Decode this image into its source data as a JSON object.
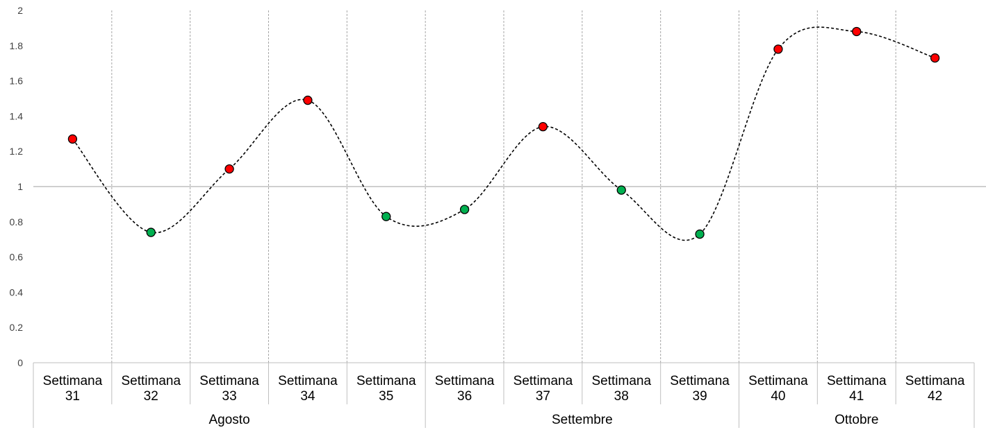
{
  "chart_data": {
    "type": "line",
    "title": "",
    "xlabel": "",
    "ylabel": "",
    "ylim": [
      0,
      2
    ],
    "y_ticks": [
      "0",
      "0.2",
      "0.4",
      "0.6",
      "0.8",
      "1",
      "1.2",
      "1.4",
      "1.6",
      "1.8",
      "2"
    ],
    "reference_line": 1,
    "categories": [
      [
        "Settimana",
        "31"
      ],
      [
        "Settimana",
        "32"
      ],
      [
        "Settimana",
        "33"
      ],
      [
        "Settimana",
        "34"
      ],
      [
        "Settimana",
        "35"
      ],
      [
        "Settimana",
        "36"
      ],
      [
        "Settimana",
        "37"
      ],
      [
        "Settimana",
        "38"
      ],
      [
        "Settimana",
        "39"
      ],
      [
        "Settimana",
        "40"
      ],
      [
        "Settimana",
        "41"
      ],
      [
        "Settimana",
        "42"
      ]
    ],
    "groups": [
      {
        "label": "Agosto",
        "start": 0,
        "end": 4
      },
      {
        "label": "Settembre",
        "start": 5,
        "end": 8
      },
      {
        "label": "Ottobre",
        "start": 9,
        "end": 11
      }
    ],
    "series": [
      {
        "values": [
          1.27,
          0.74,
          1.1,
          1.49,
          0.83,
          0.87,
          1.34,
          0.98,
          0.73,
          1.78,
          1.88,
          1.73
        ],
        "line_style": "dashed",
        "line_color": "#000000"
      }
    ],
    "point_colors": {
      "above_reference": "#ff0000",
      "below_reference": "#00b050"
    },
    "grid": {
      "vertical": true,
      "horizontal": false
    },
    "legend": "none"
  }
}
